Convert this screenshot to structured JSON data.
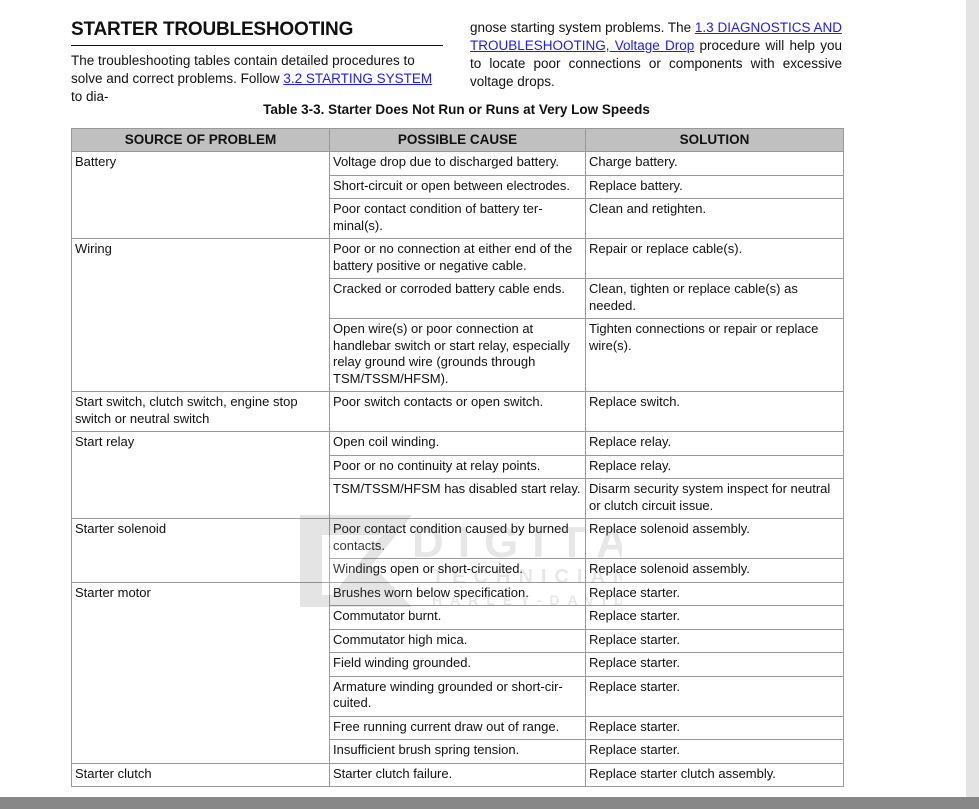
{
  "heading": "STARTER TROUBLESHOOTING",
  "intro": {
    "left_text_1": "The troubleshooting tables contain detailed procedures to solve and correct problems. Follow ",
    "link_1": "3.2 STARTING SYSTEM",
    "left_text_2": " to dia-",
    "right_text_1": "gnose starting system problems. The ",
    "link_2": "1.3 DIAGNOSTICS AND TROUBLESHOOTING, Voltage Drop",
    "right_text_2": " procedure will help you to locate poor connections or components with excessive voltage drops.",
    "link_color": "#1a1aff"
  },
  "table": {
    "caption": "Table 3-3. Starter Does Not Run or Runs at Very Low Speeds",
    "headers": [
      "SOURCE OF PROBLEM",
      "POSSIBLE CAUSE",
      "SOLUTION"
    ],
    "header_bg": "#c0c0c0",
    "groups": [
      {
        "source": "Battery",
        "rows": [
          {
            "cause": "Voltage drop due to discharged battery.",
            "solution": "Charge battery."
          },
          {
            "cause": "Short-circuit or open between electrodes.",
            "solution": "Replace battery."
          },
          {
            "cause": "Poor contact condition of battery ter-minal(s).",
            "solution": "Clean and retighten."
          }
        ]
      },
      {
        "source": "Wiring",
        "rows": [
          {
            "cause": "Poor or no connection at either end of the battery positive or negative cable.",
            "solution": "Repair or replace cable(s)."
          },
          {
            "cause": "Cracked or corroded battery cable ends.",
            "solution": "Clean, tighten or replace cable(s) as needed."
          },
          {
            "cause": "Open wire(s) or poor connection at handlebar switch or start relay, especially relay ground wire (grounds through TSM/TSSM/HFSM).",
            "solution": "Tighten connections or repair or replace wire(s)."
          }
        ]
      },
      {
        "source": "Start switch, clutch switch, engine stop switch or neutral switch",
        "rows": [
          {
            "cause": "Poor switch contacts or open switch.",
            "solution": "Replace switch."
          }
        ]
      },
      {
        "source": "Start relay",
        "rows": [
          {
            "cause": "Open coil winding.",
            "solution": "Replace relay."
          },
          {
            "cause": "Poor or no continuity at relay points.",
            "solution": "Replace relay."
          },
          {
            "cause": "TSM/TSSM/HFSM has disabled start relay.",
            "solution": "Disarm security system inspect for neutral or clutch circuit issue."
          }
        ]
      },
      {
        "source": "Starter solenoid",
        "rows": [
          {
            "cause": "Poor contact condition caused by burned contacts.",
            "solution": "Replace solenoid assembly."
          },
          {
            "cause": "Windings open or short-circuited.",
            "solution": "Replace solenoid assembly."
          }
        ]
      },
      {
        "source": "Starter motor",
        "rows": [
          {
            "cause": "Brushes worn below specification.",
            "solution": "Replace starter."
          },
          {
            "cause": "Commutator burnt.",
            "solution": "Replace starter."
          },
          {
            "cause": "Commutator high mica.",
            "solution": "Replace starter."
          },
          {
            "cause": "Field winding grounded.",
            "solution": "Replace starter."
          },
          {
            "cause": "Armature winding grounded or short-cir-cuited.",
            "solution": "Replace starter."
          },
          {
            "cause": "Free running current draw out of range.",
            "solution": "Replace starter."
          },
          {
            "cause": "Insufficient brush spring tension.",
            "solution": "Replace starter."
          }
        ]
      },
      {
        "source": "Starter clutch",
        "rows": [
          {
            "cause": "Starter clutch failure.",
            "solution": "Replace starter clutch assembly."
          }
        ]
      }
    ]
  },
  "watermark": {
    "line1": "DIGITAL",
    "line2": "TECHNICIAN II",
    "line3": "HARLEY-DAVIDSON"
  }
}
